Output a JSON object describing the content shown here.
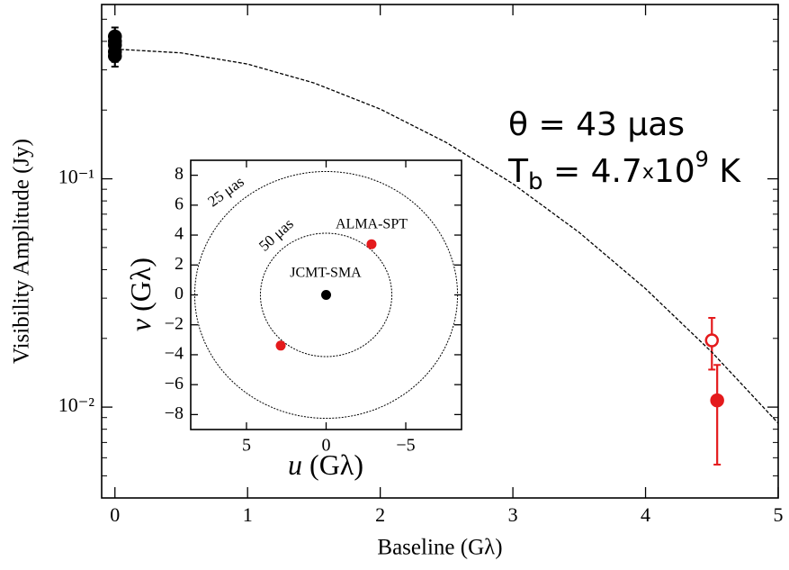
{
  "chart_data": [
    {
      "type": "scatter",
      "log_y": true,
      "x_label": "Baseline (Gλ)",
      "y_label": "Visibility Amplitude (Jy)",
      "xlim": [
        -0.1,
        5
      ],
      "xticks": [
        0,
        1,
        2,
        3,
        4,
        5
      ],
      "ylim": [
        0.004,
        0.58
      ],
      "yticks": [
        {
          "value": 0.1,
          "label": "10⁻¹"
        },
        {
          "value": 0.01,
          "label": "10⁻²"
        }
      ],
      "yminor_ticks": [
        0.005,
        0.006,
        0.007,
        0.008,
        0.009,
        0.02,
        0.03,
        0.04,
        0.05,
        0.06,
        0.07,
        0.08,
        0.09,
        0.2,
        0.3,
        0.4,
        0.5
      ],
      "annotations": [
        [
          "θ  = 43 μas"
        ],
        [
          "T",
          "b",
          " = 4.7",
          "x",
          "10",
          "9",
          " K"
        ]
      ],
      "series": [
        {
          "marker": "filled",
          "color": "#000000",
          "x": [
            0,
            0,
            0,
            0,
            0
          ],
          "values": [
            0.42,
            0.4,
            0.385,
            0.36,
            0.345
          ],
          "ylow": [
            0.38,
            0.36,
            0.345,
            0.325,
            0.31
          ],
          "yhigh": [
            0.46,
            0.44,
            0.425,
            0.395,
            0.38
          ]
        },
        {
          "marker": "open",
          "color": "#e41a1c",
          "x": [
            4.5
          ],
          "values": [
            0.0196
          ],
          "ylow": [
            0.0146
          ],
          "yhigh": [
            0.0246
          ]
        },
        {
          "marker": "filled",
          "color": "#e41a1c",
          "x": [
            4.54
          ],
          "values": [
            0.0107
          ],
          "ylow": [
            0.0056
          ],
          "yhigh": [
            0.0153
          ]
        },
        {
          "marker": "dashed-line",
          "color": "#000000",
          "x": [
            0,
            0.5,
            1,
            1.5,
            2,
            2.5,
            3,
            3.5,
            4,
            4.5,
            5
          ],
          "values": [
            0.37,
            0.356,
            0.318,
            0.263,
            0.202,
            0.144,
            0.0951,
            0.0582,
            0.033,
            0.0174,
            0.0085
          ]
        }
      ]
    },
    {
      "type": "scatter",
      "x_label": [
        "u",
        " (Gλ)"
      ],
      "y_label": [
        "v",
        " (Gλ)"
      ],
      "xlim": [
        8.5,
        -8.5
      ],
      "xticks": [
        5,
        0,
        {
          "value": -5,
          "label": "−5"
        }
      ],
      "ylim": [
        -9,
        9
      ],
      "yticks": [
        {
          "value": -8,
          "label": "−8"
        },
        {
          "value": -6,
          "label": "−6"
        },
        {
          "value": -4,
          "label": "−4"
        },
        {
          "value": -2,
          "label": "−2"
        },
        0,
        2,
        4,
        6,
        8
      ],
      "circles": [
        {
          "radius": 8.25,
          "label": "25 μas"
        },
        {
          "radius": 4.125,
          "label": "50 μas"
        }
      ],
      "series": [
        {
          "name": "JCMT-SMA",
          "color": "#000000",
          "x": [
            0
          ],
          "values": [
            0
          ]
        },
        {
          "name": "ALMA-SPT",
          "color": "#e41a1c",
          "x": [
            -2.85,
            2.85
          ],
          "values": [
            3.39,
            -3.39
          ]
        }
      ]
    }
  ]
}
